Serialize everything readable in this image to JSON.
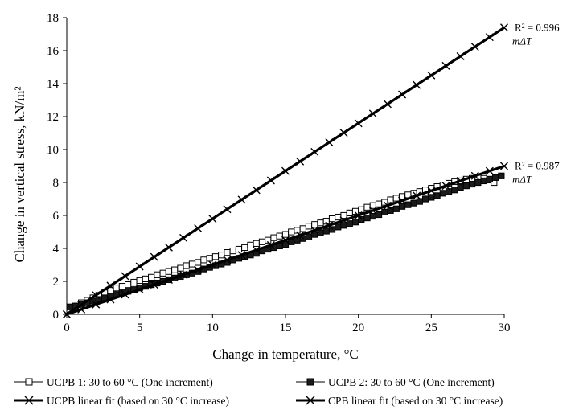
{
  "chart_data": {
    "type": "scatter",
    "xlabel": "Change in temperature, °C",
    "ylabel": "Change in vertical stress, kN/m²",
    "xlim": [
      0,
      30
    ],
    "ylim": [
      0,
      18
    ],
    "xticks": [
      0,
      5,
      10,
      15,
      20,
      25,
      30
    ],
    "yticks": [
      0,
      2,
      4,
      6,
      8,
      10,
      12,
      14,
      16,
      18
    ],
    "grid": false,
    "legend_position": "bottom",
    "series": [
      {
        "name": "UCPB 1: 30 to 60 °C (One increment)",
        "marker": "open-square",
        "x": [
          0.2,
          0.6,
          1.0,
          1.4,
          1.8,
          2.2,
          2.6,
          3.0,
          3.4,
          3.8,
          4.2,
          4.6,
          5.0,
          5.4,
          5.8,
          6.2,
          6.6,
          7.0,
          7.4,
          7.8,
          8.2,
          8.6,
          9.0,
          9.4,
          9.8,
          10.2,
          10.6,
          11.0,
          11.4,
          11.8,
          12.2,
          12.6,
          13.0,
          13.4,
          13.8,
          14.2,
          14.6,
          15.0,
          15.4,
          15.8,
          16.2,
          16.6,
          17.0,
          17.4,
          17.8,
          18.2,
          18.6,
          19.0,
          19.4,
          19.8,
          20.2,
          20.6,
          21.0,
          21.4,
          21.8,
          22.2,
          22.6,
          23.0,
          23.4,
          23.8,
          24.2,
          24.6,
          25.0,
          25.4,
          25.8,
          26.2,
          26.6,
          27.0,
          27.4,
          27.8,
          28.2,
          28.6,
          29.0,
          29.3
        ],
        "y": [
          0.3,
          0.5,
          0.7,
          0.85,
          1.0,
          1.15,
          1.3,
          1.45,
          1.6,
          1.7,
          1.8,
          1.95,
          2.05,
          2.15,
          2.25,
          2.4,
          2.5,
          2.6,
          2.7,
          2.8,
          2.95,
          3.05,
          3.15,
          3.3,
          3.4,
          3.5,
          3.6,
          3.75,
          3.85,
          3.95,
          4.05,
          4.2,
          4.3,
          4.4,
          4.5,
          4.65,
          4.75,
          4.85,
          5.0,
          5.1,
          5.2,
          5.35,
          5.45,
          5.55,
          5.65,
          5.8,
          5.9,
          6.0,
          6.15,
          6.25,
          6.35,
          6.5,
          6.6,
          6.7,
          6.8,
          6.95,
          7.05,
          7.15,
          7.25,
          7.35,
          7.45,
          7.55,
          7.65,
          7.75,
          7.85,
          7.95,
          8.05,
          8.1,
          8.2,
          8.25,
          8.3,
          8.25,
          8.15,
          8.0
        ]
      },
      {
        "name": "UCPB 2: 30 to 60 °C (One increment)",
        "marker": "filled-square",
        "x": [
          0.2,
          0.6,
          1.0,
          1.4,
          1.8,
          2.2,
          2.6,
          3.0,
          3.4,
          3.8,
          4.2,
          4.6,
          5.0,
          5.4,
          5.8,
          6.2,
          6.6,
          7.0,
          7.4,
          7.8,
          8.2,
          8.6,
          9.0,
          9.4,
          9.8,
          10.2,
          10.6,
          11.0,
          11.4,
          11.8,
          12.2,
          12.6,
          13.0,
          13.4,
          13.8,
          14.2,
          14.6,
          15.0,
          15.4,
          15.8,
          16.2,
          16.6,
          17.0,
          17.4,
          17.8,
          18.2,
          18.6,
          19.0,
          19.4,
          19.8,
          20.2,
          20.6,
          21.0,
          21.4,
          21.8,
          22.2,
          22.6,
          23.0,
          23.4,
          23.8,
          24.2,
          24.6,
          25.0,
          25.4,
          25.8,
          26.2,
          26.6,
          27.0,
          27.4,
          27.8,
          28.2,
          28.6,
          29.0,
          29.4,
          29.8
        ],
        "y": [
          0.45,
          0.5,
          0.6,
          0.7,
          0.8,
          0.9,
          1.0,
          1.1,
          1.2,
          1.3,
          1.4,
          1.5,
          1.6,
          1.7,
          1.8,
          1.9,
          2.0,
          2.1,
          2.2,
          2.3,
          2.4,
          2.5,
          2.6,
          2.75,
          2.85,
          2.95,
          3.05,
          3.15,
          3.3,
          3.4,
          3.5,
          3.6,
          3.7,
          3.85,
          3.95,
          4.05,
          4.15,
          4.25,
          4.4,
          4.5,
          4.6,
          4.7,
          4.85,
          4.95,
          5.05,
          5.15,
          5.3,
          5.4,
          5.5,
          5.6,
          5.75,
          5.85,
          5.95,
          6.05,
          6.2,
          6.3,
          6.4,
          6.55,
          6.65,
          6.75,
          6.85,
          7.0,
          7.1,
          7.2,
          7.35,
          7.45,
          7.55,
          7.7,
          7.8,
          7.9,
          8.0,
          8.1,
          8.2,
          8.3,
          8.4
        ]
      },
      {
        "name": "UCPB linear fit (based on 30 °C increase)",
        "marker": "x",
        "slope": 0.3,
        "x": [
          0,
          30
        ],
        "y": [
          0,
          9.0
        ]
      },
      {
        "name": "CPB linear fit (based on 30 °C increase)",
        "marker": "x",
        "slope": 0.58,
        "x": [
          0,
          30
        ],
        "y": [
          0,
          17.4
        ]
      }
    ],
    "annotations": [
      {
        "r2": "R² = 0.996",
        "eq": "mΔT",
        "x": 30,
        "y": 17.4
      },
      {
        "r2": "R² = 0.987",
        "eq": "mΔT",
        "x": 30,
        "y": 9.0
      }
    ]
  }
}
